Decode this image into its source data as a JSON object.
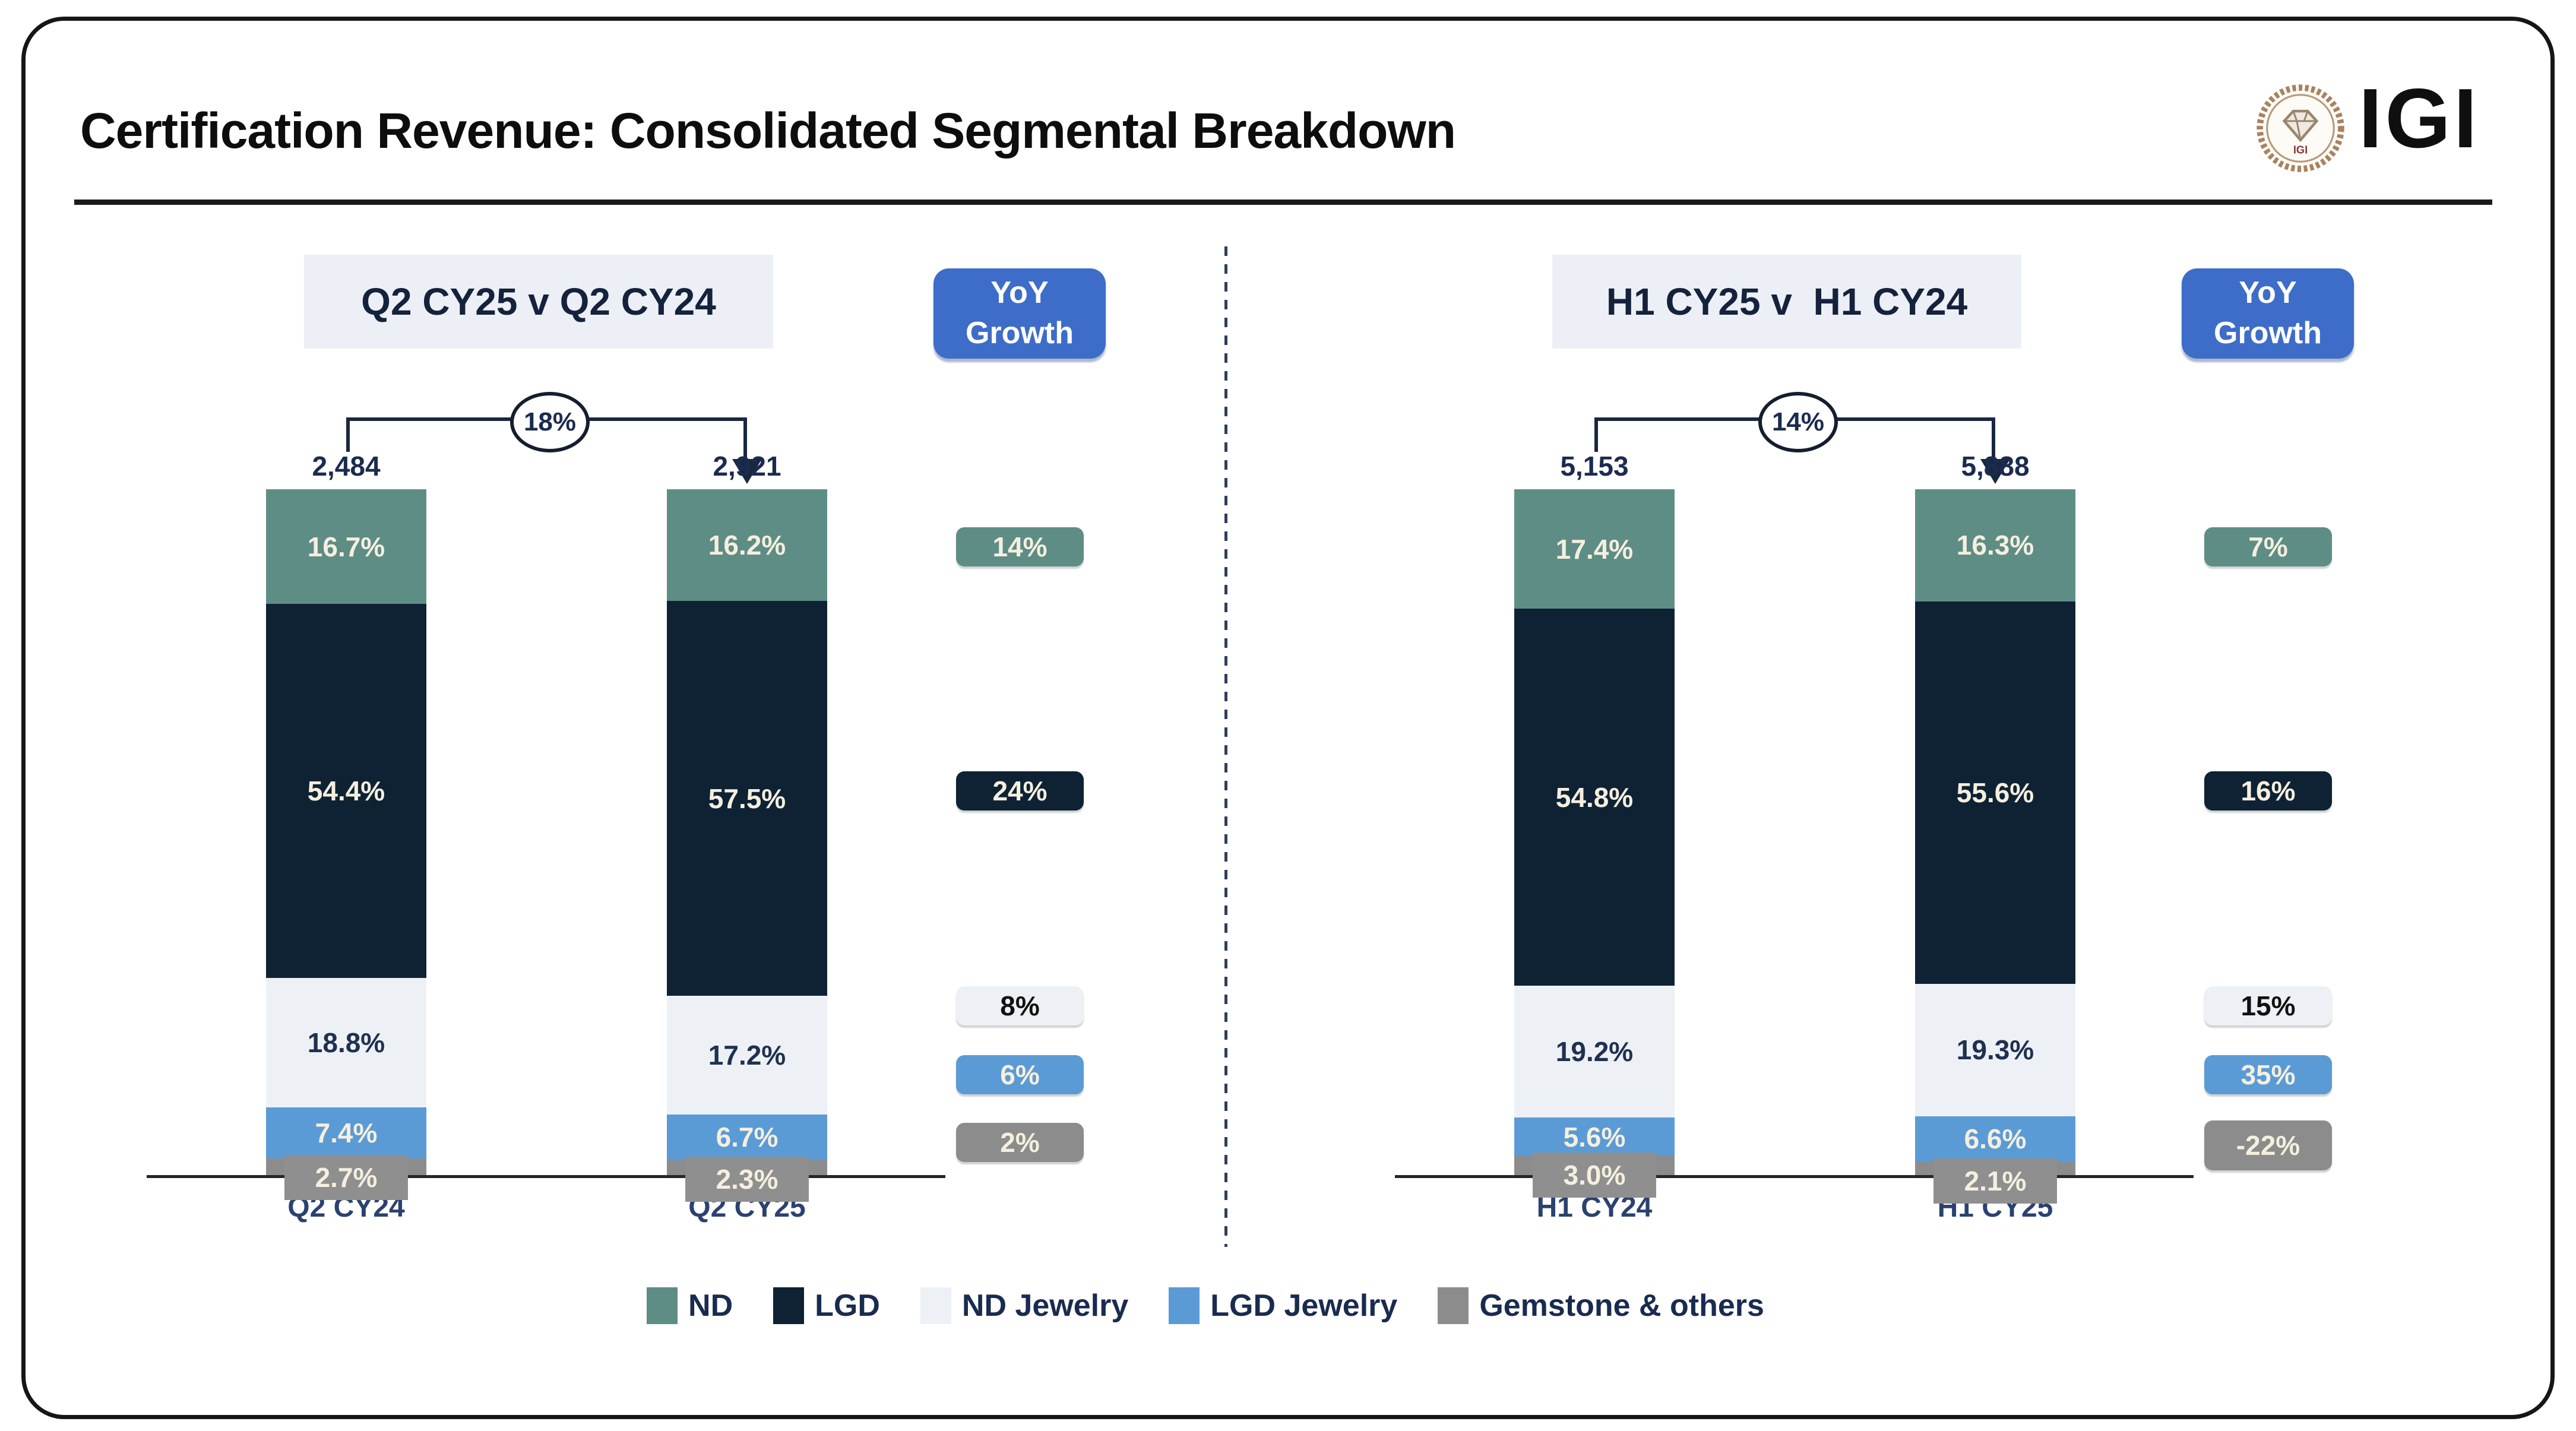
{
  "header": {
    "title": "Certification Revenue: Consolidated Segmental Breakdown",
    "logo_text": "IGI",
    "seal_text": "IGI"
  },
  "labels": {
    "yoy_line1": "YoY",
    "yoy_line2": "Growth"
  },
  "colors": {
    "yoy_badge": "#3d6dc9",
    "divider": "#2e4057",
    "text_navy": "#1f3150"
  },
  "legend": {
    "items": [
      {
        "label": "ND",
        "color": "#5e8d85"
      },
      {
        "label": "LGD",
        "color": "#0e2234"
      },
      {
        "label": "ND Jewelry",
        "color": "#edf1f6"
      },
      {
        "label": "LGD Jewelry",
        "color": "#5b9bd5"
      },
      {
        "label": "Gemstone & others",
        "color": "#8c8c8c"
      }
    ]
  },
  "chart_data": [
    {
      "type": "bar",
      "stacked": true,
      "panel_title": "Q2 CY25 v Q2 CY24",
      "categories": [
        "Q2 CY24",
        "Q2 CY25"
      ],
      "totals": [
        2484,
        2921
      ],
      "totals_fmt": [
        "2,484",
        "2,921"
      ],
      "total_growth_pct": 18,
      "total_growth_label": "18%",
      "ylim": [
        0,
        100
      ],
      "unit": "percent share of revenue",
      "legend_position": "bottom",
      "series": [
        {
          "name": "ND",
          "color": "#5e8d85",
          "values": [
            16.7,
            16.2
          ],
          "labels": [
            "16.7%",
            "16.2%"
          ],
          "growth_pct": 14,
          "growth_label": "14%"
        },
        {
          "name": "LGD",
          "color": "#0e2234",
          "values": [
            54.4,
            57.5
          ],
          "labels": [
            "54.4%",
            "57.5%"
          ],
          "growth_pct": 24,
          "growth_label": "24%"
        },
        {
          "name": "ND Jewelry",
          "color": "#edf1f6",
          "values": [
            18.8,
            17.2
          ],
          "labels": [
            "18.8%",
            "17.2%"
          ],
          "growth_pct": 8,
          "growth_label": "8%"
        },
        {
          "name": "LGD Jewelry",
          "color": "#5b9bd5",
          "values": [
            7.4,
            6.7
          ],
          "labels": [
            "7.4%",
            "6.7%"
          ],
          "growth_pct": 6,
          "growth_label": "6%"
        },
        {
          "name": "Gemstone & others",
          "color": "#8c8c8c",
          "values": [
            2.7,
            2.3
          ],
          "labels": [
            "2.7%",
            "2.3%"
          ],
          "growth_pct": 2,
          "growth_label": "2%"
        }
      ]
    },
    {
      "type": "bar",
      "stacked": true,
      "panel_title": "H1 CY25 v  H1 CY24",
      "categories": [
        "H1 CY24",
        "H1 CY25"
      ],
      "totals": [
        5153,
        5888
      ],
      "totals_fmt": [
        "5,153",
        "5,888"
      ],
      "total_growth_pct": 14,
      "total_growth_label": "14%",
      "ylim": [
        0,
        100
      ],
      "unit": "percent share of revenue",
      "legend_position": "bottom",
      "series": [
        {
          "name": "ND",
          "color": "#5e8d85",
          "values": [
            17.4,
            16.3
          ],
          "labels": [
            "17.4%",
            "16.3%"
          ],
          "growth_pct": 7,
          "growth_label": "7%"
        },
        {
          "name": "LGD",
          "color": "#0e2234",
          "values": [
            54.8,
            55.6
          ],
          "labels": [
            "54.8%",
            "55.6%"
          ],
          "growth_pct": 16,
          "growth_label": "16%"
        },
        {
          "name": "ND Jewelry",
          "color": "#edf1f6",
          "values": [
            19.2,
            19.3
          ],
          "labels": [
            "19.2%",
            "19.3%"
          ],
          "growth_pct": 15,
          "growth_label": "15%"
        },
        {
          "name": "LGD Jewelry",
          "color": "#5b9bd5",
          "values": [
            5.6,
            6.6
          ],
          "labels": [
            "5.6%",
            "6.6%"
          ],
          "growth_pct": 35,
          "growth_label": "35%"
        },
        {
          "name": "Gemstone & others",
          "color": "#8c8c8c",
          "values": [
            3.0,
            2.1
          ],
          "labels": [
            "3.0%",
            "2.1%"
          ],
          "growth_pct": -22,
          "growth_label": "-22%"
        }
      ]
    }
  ]
}
